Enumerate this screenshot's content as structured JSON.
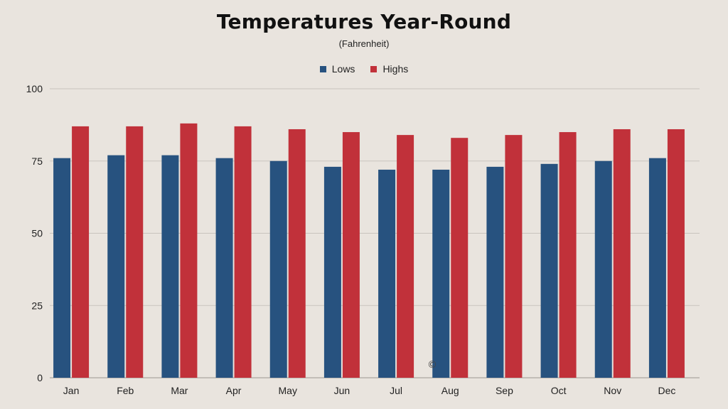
{
  "chart_data": {
    "type": "bar",
    "title": "Temperatures Year-Round",
    "subtitle": "(Fahrenheit)",
    "categories": [
      "Jan",
      "Feb",
      "Mar",
      "Apr",
      "May",
      "Jun",
      "Jul",
      "Aug",
      "Sep",
      "Oct",
      "Nov",
      "Dec"
    ],
    "series": [
      {
        "name": "Lows",
        "color": "#27527f",
        "values": [
          76,
          77,
          77,
          76,
          75,
          73,
          72,
          72,
          73,
          74,
          75,
          76
        ]
      },
      {
        "name": "Highs",
        "color": "#c1313a",
        "values": [
          87,
          87,
          88,
          87,
          86,
          85,
          84,
          83,
          84,
          85,
          86,
          86
        ]
      }
    ],
    "ylim": [
      0,
      100
    ],
    "yticks": [
      0,
      25,
      50,
      75,
      100
    ],
    "grid": true,
    "legend_position": "top-center",
    "watermark": "©"
  }
}
